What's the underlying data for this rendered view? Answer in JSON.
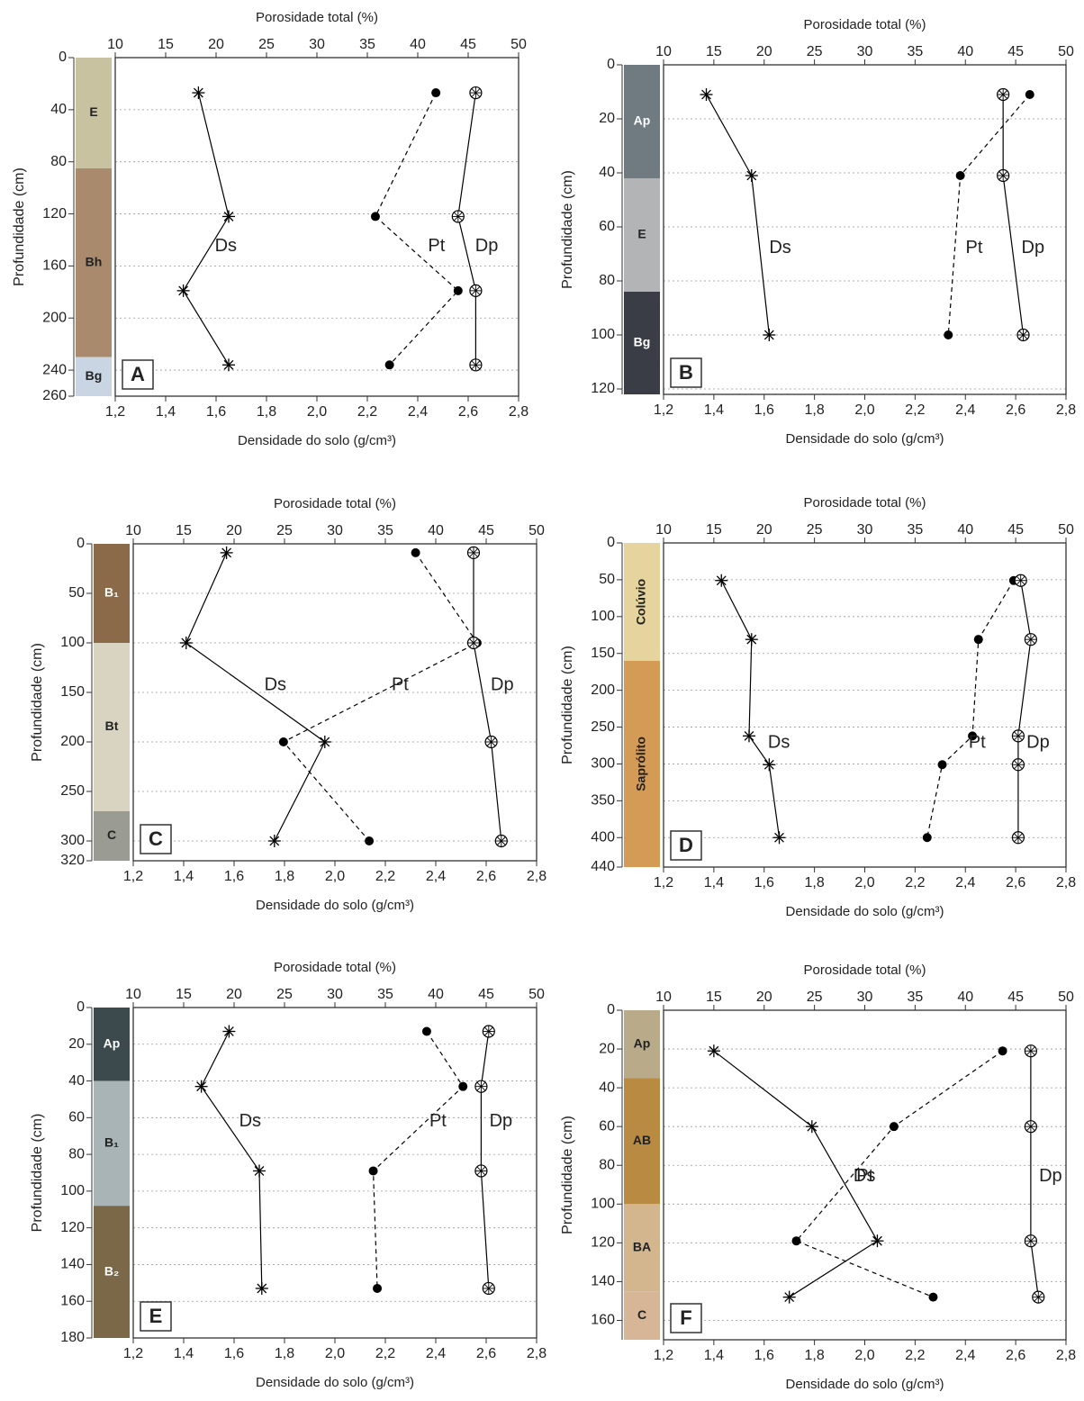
{
  "chart_data": [
    {
      "type": "line",
      "label": "A",
      "xlabel": "Densidade do solo (g/cm³)",
      "x2label": "Porosidade total (%)",
      "ylabel": "Profundidade (cm)",
      "depths": [
        27,
        122,
        179,
        236
      ],
      "series": [
        {
          "name": "Ds",
          "axis": "x",
          "marker": "asterisk",
          "dashed": false,
          "color": "#000000",
          "values": [
            1.53,
            1.65,
            1.47,
            1.65
          ]
        },
        {
          "name": "Pt",
          "axis": "x2",
          "marker": "dot",
          "dashed": true,
          "color": "#000000",
          "values": [
            41.8,
            35.8,
            44.0,
            37.2
          ]
        },
        {
          "name": "Dp",
          "axis": "x",
          "marker": "xcircle",
          "dashed": false,
          "color": "#000000",
          "values": [
            2.63,
            2.56,
            2.63,
            2.63
          ]
        }
      ],
      "xlim": [
        1.2,
        2.8
      ],
      "xticks": [
        {
          "value": 1.2,
          "label": "1,2"
        },
        {
          "value": 1.4,
          "label": "1,4"
        },
        {
          "value": 1.6,
          "label": "1,6"
        },
        {
          "value": 1.8,
          "label": "1,8"
        },
        {
          "value": 2.0,
          "label": "2,0"
        },
        {
          "value": 2.2,
          "label": "2,2"
        },
        {
          "value": 2.4,
          "label": "2,4"
        },
        {
          "value": 2.6,
          "label": "2,6"
        },
        {
          "value": 2.8,
          "label": "2,8"
        }
      ],
      "x2lim": [
        10,
        50
      ],
      "x2ticks": [
        10,
        15,
        20,
        25,
        30,
        35,
        40,
        45,
        50
      ],
      "ylim": [
        0,
        260
      ],
      "yticks": [
        0,
        40,
        80,
        120,
        160,
        200,
        240,
        260
      ],
      "y_inverted": true,
      "grid": true,
      "horizons": [
        {
          "label": "E",
          "top": 0,
          "bottom": 85,
          "color": "#c9c2a0"
        },
        {
          "label": "Bh",
          "top": 85,
          "bottom": 230,
          "color": "#a98a6c"
        },
        {
          "label": "Bg",
          "top": 230,
          "bottom": 260,
          "color": "#c9d5e2"
        }
      ]
    },
    {
      "type": "line",
      "label": "B",
      "xlabel": "Densidade do solo (g/cm³)",
      "x2label": "Porosidade total (%)",
      "ylabel": "Profundidade (cm)",
      "depths": [
        11,
        41,
        100
      ],
      "series": [
        {
          "name": "Ds",
          "axis": "x",
          "marker": "asterisk",
          "dashed": false,
          "color": "#000000",
          "values": [
            1.37,
            1.55,
            1.62
          ]
        },
        {
          "name": "Pt",
          "axis": "x2",
          "marker": "dot",
          "dashed": true,
          "color": "#000000",
          "values": [
            46.4,
            39.5,
            38.3
          ]
        },
        {
          "name": "Dp",
          "axis": "x",
          "marker": "xcircle",
          "dashed": false,
          "color": "#000000",
          "values": [
            2.55,
            2.55,
            2.63
          ]
        }
      ],
      "xlim": [
        1.2,
        2.8
      ],
      "xticks": [
        {
          "value": 1.2,
          "label": "1,2"
        },
        {
          "value": 1.4,
          "label": "1,4"
        },
        {
          "value": 1.6,
          "label": "1,6"
        },
        {
          "value": 1.8,
          "label": "1,8"
        },
        {
          "value": 2.0,
          "label": "2,0"
        },
        {
          "value": 2.2,
          "label": "2,2"
        },
        {
          "value": 2.4,
          "label": "2,4"
        },
        {
          "value": 2.6,
          "label": "2,6"
        },
        {
          "value": 2.8,
          "label": "2,8"
        }
      ],
      "x2lim": [
        10,
        50
      ],
      "x2ticks": [
        10,
        15,
        20,
        25,
        30,
        35,
        40,
        45,
        50
      ],
      "ylim": [
        0,
        122
      ],
      "yticks": [
        0,
        20,
        40,
        60,
        80,
        100,
        120
      ],
      "y_inverted": true,
      "grid": true,
      "horizons": [
        {
          "label": "Ap",
          "top": 0,
          "bottom": 42,
          "color": "#6f7b80"
        },
        {
          "label": "E",
          "top": 42,
          "bottom": 84,
          "color": "#b2b4b6"
        },
        {
          "label": "Bg",
          "top": 84,
          "bottom": 122,
          "color": "#3a3d45"
        }
      ]
    },
    {
      "type": "line",
      "label": "C",
      "xlabel": "Densidade do solo (g/cm³)",
      "x2label": "Porosidade total (%)",
      "ylabel": "Profundidade (cm)",
      "depths": [
        9,
        100,
        200,
        300
      ],
      "series": [
        {
          "name": "Ds",
          "axis": "x",
          "marker": "asterisk",
          "dashed": false,
          "color": "#000000",
          "values": [
            1.57,
            1.41,
            1.96,
            1.76
          ]
        },
        {
          "name": "Pt",
          "axis": "x2",
          "marker": "dot",
          "dashed": true,
          "color": "#000000",
          "values": [
            38.0,
            44.1,
            24.9,
            33.4
          ]
        },
        {
          "name": "Dp",
          "axis": "x",
          "marker": "xcircle",
          "dashed": false,
          "color": "#000000",
          "values": [
            2.55,
            2.55,
            2.62,
            2.66
          ]
        }
      ],
      "xlim": [
        1.2,
        2.8
      ],
      "xticks": [
        {
          "value": 1.2,
          "label": "1,2"
        },
        {
          "value": 1.4,
          "label": "1,4"
        },
        {
          "value": 1.6,
          "label": "1,6"
        },
        {
          "value": 1.8,
          "label": "1,8"
        },
        {
          "value": 2.0,
          "label": "2,0"
        },
        {
          "value": 2.2,
          "label": "2,2"
        },
        {
          "value": 2.4,
          "label": "2,4"
        },
        {
          "value": 2.6,
          "label": "2,6"
        },
        {
          "value": 2.8,
          "label": "2,8"
        }
      ],
      "x2lim": [
        10,
        50
      ],
      "x2ticks": [
        10,
        15,
        20,
        25,
        30,
        35,
        40,
        45,
        50
      ],
      "ylim": [
        0,
        320
      ],
      "yticks": [
        0,
        50,
        100,
        150,
        200,
        250,
        300,
        320
      ],
      "y_inverted": true,
      "grid": true,
      "horizons": [
        {
          "label": "B₁",
          "top": 0,
          "bottom": 100,
          "color": "#8a6a48"
        },
        {
          "label": "Bt",
          "top": 100,
          "bottom": 270,
          "color": "#d9d3c1"
        },
        {
          "label": "C",
          "top": 270,
          "bottom": 320,
          "color": "#9a9c94"
        }
      ]
    },
    {
      "type": "line",
      "label": "D",
      "xlabel": "Densidade do solo (g/cm³)",
      "x2label": "Porosidade total (%)",
      "ylabel": "Profundidade (cm)",
      "depths": [
        51,
        131,
        262,
        301,
        400
      ],
      "series": [
        {
          "name": "Ds",
          "axis": "x",
          "marker": "asterisk",
          "dashed": false,
          "color": "#000000",
          "values": [
            1.43,
            1.55,
            1.54,
            1.62,
            1.66
          ]
        },
        {
          "name": "Pt",
          "axis": "x2",
          "marker": "dot",
          "dashed": true,
          "color": "#000000",
          "values": [
            44.8,
            41.3,
            40.7,
            37.7,
            36.2
          ]
        },
        {
          "name": "Dp",
          "axis": "x",
          "marker": "xcircle",
          "dashed": false,
          "color": "#000000",
          "values": [
            2.62,
            2.66,
            2.61,
            2.61,
            2.61
          ]
        }
      ],
      "xlim": [
        1.2,
        2.8
      ],
      "xticks": [
        {
          "value": 1.2,
          "label": "1,2"
        },
        {
          "value": 1.4,
          "label": "1,4"
        },
        {
          "value": 1.6,
          "label": "1,6"
        },
        {
          "value": 1.8,
          "label": "1,8"
        },
        {
          "value": 2.0,
          "label": "2,0"
        },
        {
          "value": 2.2,
          "label": "2,2"
        },
        {
          "value": 2.4,
          "label": "2,4"
        },
        {
          "value": 2.6,
          "label": "2,6"
        },
        {
          "value": 2.8,
          "label": "2,8"
        }
      ],
      "x2lim": [
        10,
        50
      ],
      "x2ticks": [
        10,
        15,
        20,
        25,
        30,
        35,
        40,
        45,
        50
      ],
      "ylim": [
        0,
        440
      ],
      "yticks": [
        0,
        50,
        100,
        150,
        200,
        250,
        300,
        350,
        400,
        440
      ],
      "y_inverted": true,
      "grid": true,
      "horizons": [
        {
          "label": "Colúvio",
          "top": 0,
          "bottom": 160,
          "color": "#e6d49e"
        },
        {
          "label": "Saprólito",
          "top": 160,
          "bottom": 440,
          "color": "#d49b57"
        }
      ]
    },
    {
      "type": "line",
      "label": "E",
      "xlabel": "Densidade do solo (g/cm³)",
      "x2label": "Porosidade total (%)",
      "ylabel": "Profundidade (cm)",
      "depths": [
        13,
        43,
        89,
        153
      ],
      "series": [
        {
          "name": "Ds",
          "axis": "x",
          "marker": "asterisk",
          "dashed": false,
          "color": "#000000",
          "values": [
            1.58,
            1.47,
            1.7,
            1.71
          ]
        },
        {
          "name": "Pt",
          "axis": "x2",
          "marker": "dot",
          "dashed": true,
          "color": "#000000",
          "values": [
            39.1,
            42.7,
            33.8,
            34.2
          ]
        },
        {
          "name": "Dp",
          "axis": "x",
          "marker": "xcircle",
          "dashed": false,
          "color": "#000000",
          "values": [
            2.61,
            2.58,
            2.58,
            2.61
          ]
        }
      ],
      "xlim": [
        1.2,
        2.8
      ],
      "xticks": [
        {
          "value": 1.2,
          "label": "1,2"
        },
        {
          "value": 1.4,
          "label": "1,4"
        },
        {
          "value": 1.6,
          "label": "1,6"
        },
        {
          "value": 1.8,
          "label": "1,8"
        },
        {
          "value": 2.0,
          "label": "2,0"
        },
        {
          "value": 2.2,
          "label": "2,2"
        },
        {
          "value": 2.4,
          "label": "2,4"
        },
        {
          "value": 2.6,
          "label": "2,6"
        },
        {
          "value": 2.8,
          "label": "2,8"
        }
      ],
      "x2lim": [
        10,
        50
      ],
      "x2ticks": [
        10,
        15,
        20,
        25,
        30,
        35,
        40,
        45,
        50
      ],
      "ylim": [
        0,
        180
      ],
      "yticks": [
        0,
        20,
        40,
        60,
        80,
        100,
        120,
        140,
        160,
        180
      ],
      "y_inverted": true,
      "grid": true,
      "horizons": [
        {
          "label": "Ap",
          "top": 0,
          "bottom": 40,
          "color": "#3c4a4e"
        },
        {
          "label": "B₁",
          "top": 40,
          "bottom": 108,
          "color": "#a8b4b6"
        },
        {
          "label": "B₂",
          "top": 108,
          "bottom": 180,
          "color": "#7a6848"
        }
      ]
    },
    {
      "type": "line",
      "label": "F",
      "xlabel": "Densidade do solo (g/cm³)",
      "x2label": "Porosidade total (%)",
      "ylabel": "Profundidade (cm)",
      "depths": [
        21,
        60,
        119,
        148
      ],
      "series": [
        {
          "name": "Ds",
          "axis": "x",
          "marker": "asterisk",
          "dashed": false,
          "color": "#000000",
          "values": [
            1.4,
            1.79,
            2.05,
            1.7
          ]
        },
        {
          "name": "Pt",
          "axis": "x2",
          "marker": "dot",
          "dashed": true,
          "color": "#000000",
          "values": [
            43.7,
            32.9,
            23.2,
            36.8
          ]
        },
        {
          "name": "Dp",
          "axis": "x",
          "marker": "xcircle",
          "dashed": false,
          "color": "#000000",
          "values": [
            2.66,
            2.66,
            2.66,
            2.69
          ]
        }
      ],
      "xlim": [
        1.2,
        2.8
      ],
      "xticks": [
        {
          "value": 1.2,
          "label": "1,2"
        },
        {
          "value": 1.4,
          "label": "1,4"
        },
        {
          "value": 1.6,
          "label": "1,6"
        },
        {
          "value": 1.8,
          "label": "1,8"
        },
        {
          "value": 2.0,
          "label": "2,0"
        },
        {
          "value": 2.2,
          "label": "2,2"
        },
        {
          "value": 2.4,
          "label": "2,4"
        },
        {
          "value": 2.6,
          "label": "2,6"
        },
        {
          "value": 2.8,
          "label": "2,8"
        }
      ],
      "x2lim": [
        10,
        50
      ],
      "x2ticks": [
        10,
        15,
        20,
        25,
        30,
        35,
        40,
        45,
        50
      ],
      "ylim": [
        0,
        170
      ],
      "yticks": [
        0,
        20,
        40,
        60,
        80,
        100,
        120,
        140,
        160
      ],
      "y_inverted": true,
      "grid": true,
      "horizons": [
        {
          "label": "Ap",
          "top": 0,
          "bottom": 35,
          "color": "#b9aa8a"
        },
        {
          "label": "AB",
          "top": 35,
          "bottom": 100,
          "color": "#b98a42"
        },
        {
          "label": "BA",
          "top": 100,
          "bottom": 145,
          "color": "#d3b58e"
        },
        {
          "label": "C",
          "top": 145,
          "bottom": 170,
          "color": "#d6b696"
        }
      ]
    }
  ]
}
